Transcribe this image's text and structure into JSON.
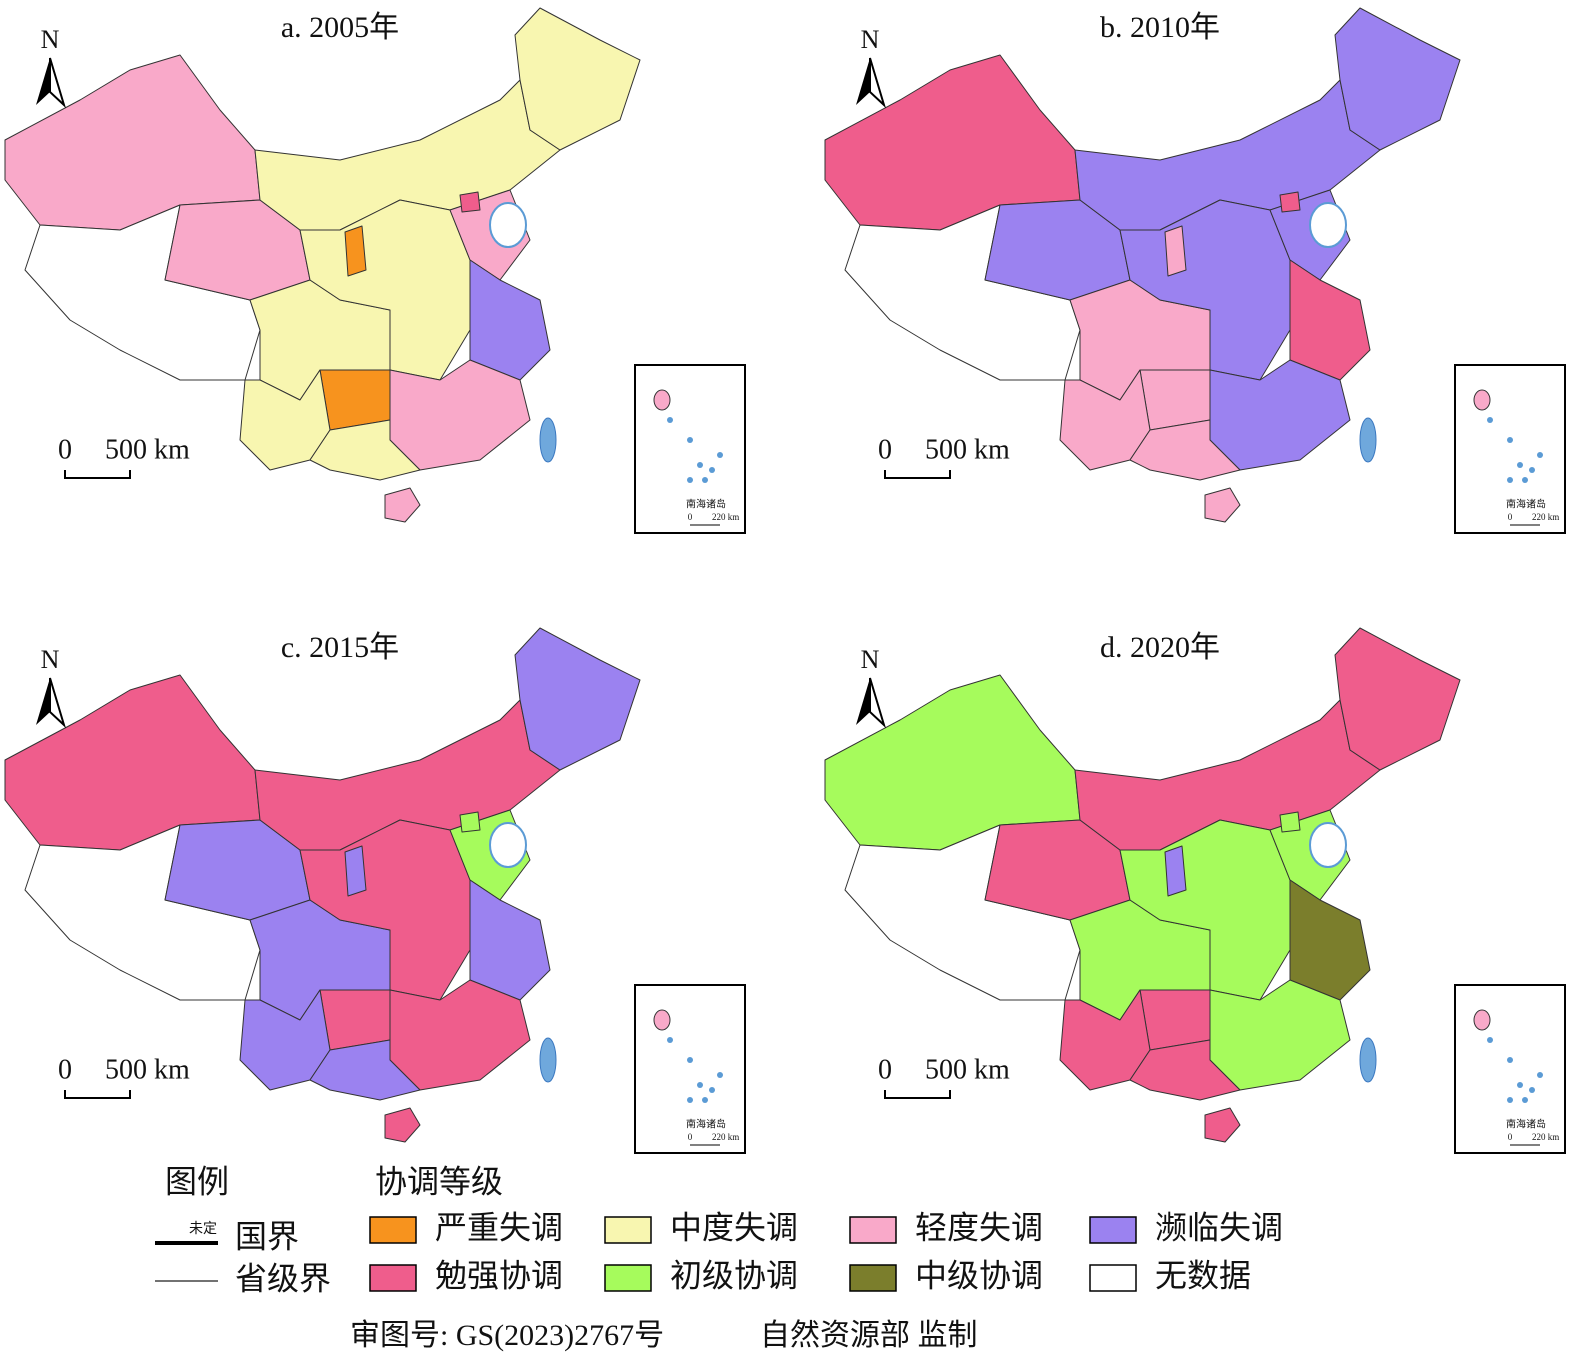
{
  "legend": {
    "title": "图例",
    "class_title": "协调等级",
    "items": [
      {
        "label": "严重失调",
        "color": "#f7931e"
      },
      {
        "label": "中度失调",
        "color": "#f8f6b0"
      },
      {
        "label": "轻度失调",
        "color": "#f9a9c9"
      },
      {
        "label": "濒临失调",
        "color": "#9b82f0"
      },
      {
        "label": "勉强协调",
        "color": "#ef5d8c"
      },
      {
        "label": "初级协调",
        "color": "#a6fb5c"
      },
      {
        "label": "中级协调",
        "color": "#7b7e2c"
      },
      {
        "label": "无数据",
        "color": "#ffffff"
      }
    ],
    "border_label": "国界",
    "undefined_label": "未定",
    "province_label": "省级界"
  },
  "panels": [
    {
      "title": "a. 2005年",
      "north": "N",
      "scale_zero": "0",
      "scale_label": "500 km",
      "inset_label": "南海诸岛",
      "inset_zero": "0",
      "inset_scale": "220 km",
      "region_colors": [
        "#f9a9c9",
        "#ffffff",
        "#f9a9c9",
        "#f8f6b0",
        "#f8f6b0",
        "#f8f6b0",
        "#f7931e",
        "#f8f6b0",
        "#f8f6b0",
        "#f9a9c9",
        "#9b82f0",
        "#f9a9c9",
        "#f8f6b0",
        "#f9a9c9",
        "#f7931e",
        "#ef5d8c"
      ]
    },
    {
      "title": "b. 2010年",
      "north": "N",
      "scale_zero": "0",
      "scale_label": "500 km",
      "inset_label": "南海诸岛",
      "inset_zero": "0",
      "inset_scale": "220 km",
      "region_colors": [
        "#ef5d8c",
        "#ffffff",
        "#9b82f0",
        "#9b82f0",
        "#9b82f0",
        "#f9a9c9",
        "#f9a9c9",
        "#f9a9c9",
        "#9b82f0",
        "#9b82f0",
        "#ef5d8c",
        "#9b82f0",
        "#f9a9c9",
        "#f9a9c9",
        "#f9a9c9",
        "#ef5d8c"
      ]
    },
    {
      "title": "c. 2015年",
      "north": "N",
      "scale_zero": "0",
      "scale_label": "500 km",
      "inset_label": "南海诸岛",
      "inset_zero": "0",
      "inset_scale": "220 km",
      "region_colors": [
        "#ef5d8c",
        "#ffffff",
        "#9b82f0",
        "#ef5d8c",
        "#9b82f0",
        "#9b82f0",
        "#ef5d8c",
        "#9b82f0",
        "#ef5d8c",
        "#a6fb5c",
        "#9b82f0",
        "#ef5d8c",
        "#9b82f0",
        "#ef5d8c",
        "#9b82f0",
        "#a6fb5c"
      ]
    },
    {
      "title": "d. 2020年",
      "north": "N",
      "scale_zero": "0",
      "scale_label": "500 km",
      "inset_label": "南海诸岛",
      "inset_zero": "0",
      "inset_scale": "220 km",
      "region_colors": [
        "#a6fb5c",
        "#ffffff",
        "#ef5d8c",
        "#ef5d8c",
        "#ef5d8c",
        "#a6fb5c",
        "#ef5d8c",
        "#ef5d8c",
        "#a6fb5c",
        "#a6fb5c",
        "#7b7e2c",
        "#a6fb5c",
        "#ef5d8c",
        "#ef5d8c",
        "#9b82f0",
        "#a6fb5c"
      ]
    }
  ],
  "footer": {
    "review_number": "审图号: GS(2023)2767号",
    "supervisor": "自然资源部 监制"
  }
}
